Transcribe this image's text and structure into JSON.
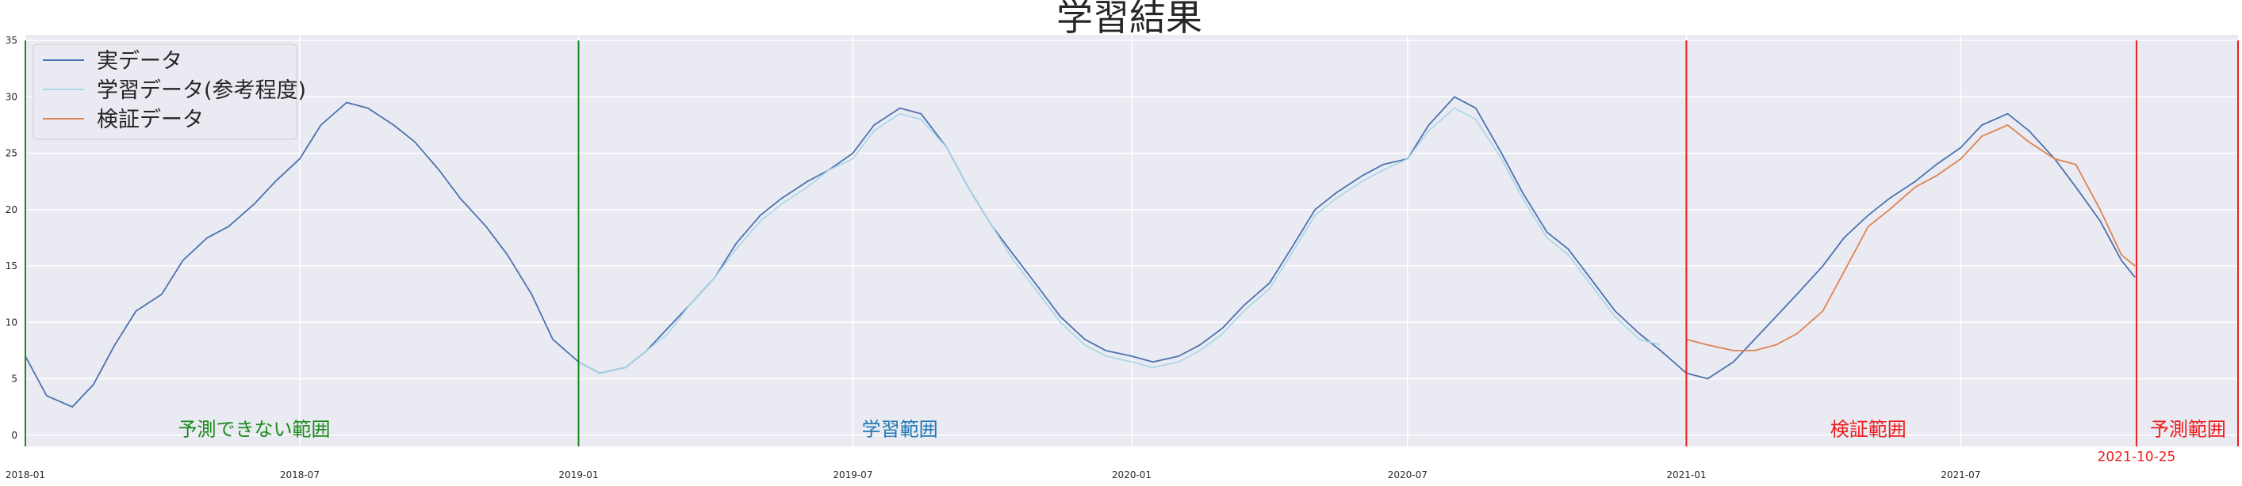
{
  "chart_data": {
    "type": "line",
    "title": "学習結果",
    "xlabel": "",
    "ylabel": "",
    "xlim": [
      "2018-01-01",
      "2021-12-31"
    ],
    "ylim": [
      -1,
      35.5
    ],
    "grid": true,
    "legend_position": "top-left",
    "x_ticks": [
      "2018-01",
      "2018-07",
      "2019-01",
      "2019-07",
      "2020-01",
      "2020-07",
      "2021-01",
      "2021-07"
    ],
    "y_ticks": [
      0,
      5,
      10,
      15,
      20,
      25,
      30,
      35
    ],
    "series": [
      {
        "name": "実データ",
        "color": "#4c72b0",
        "points": [
          [
            "2018-01-01",
            7.0
          ],
          [
            "2018-01-15",
            3.5
          ],
          [
            "2018-02-01",
            2.5
          ],
          [
            "2018-02-15",
            4.5
          ],
          [
            "2018-03-01",
            8.0
          ],
          [
            "2018-03-15",
            11.0
          ],
          [
            "2018-04-01",
            12.5
          ],
          [
            "2018-04-15",
            15.5
          ],
          [
            "2018-05-01",
            17.5
          ],
          [
            "2018-05-15",
            18.5
          ],
          [
            "2018-06-01",
            20.5
          ],
          [
            "2018-06-15",
            22.5
          ],
          [
            "2018-07-01",
            24.5
          ],
          [
            "2018-07-15",
            27.5
          ],
          [
            "2018-08-01",
            29.5
          ],
          [
            "2018-08-15",
            29.0
          ],
          [
            "2018-09-01",
            27.5
          ],
          [
            "2018-09-15",
            26.0
          ],
          [
            "2018-10-01",
            23.5
          ],
          [
            "2018-10-15",
            21.0
          ],
          [
            "2018-11-01",
            18.5
          ],
          [
            "2018-11-15",
            16.0
          ],
          [
            "2018-12-01",
            12.5
          ],
          [
            "2018-12-15",
            8.5
          ],
          [
            "2019-01-01",
            6.5
          ],
          [
            "2019-01-15",
            5.5
          ],
          [
            "2019-02-01",
            6.0
          ],
          [
            "2019-02-15",
            7.5
          ],
          [
            "2019-03-01",
            9.5
          ],
          [
            "2019-03-15",
            11.5
          ],
          [
            "2019-04-01",
            14.0
          ],
          [
            "2019-04-15",
            17.0
          ],
          [
            "2019-05-01",
            19.5
          ],
          [
            "2019-05-15",
            21.0
          ],
          [
            "2019-06-01",
            22.5
          ],
          [
            "2019-06-15",
            23.5
          ],
          [
            "2019-07-01",
            25.0
          ],
          [
            "2019-07-15",
            27.5
          ],
          [
            "2019-08-01",
            29.0
          ],
          [
            "2019-08-15",
            28.5
          ],
          [
            "2019-09-01",
            25.5
          ],
          [
            "2019-09-15",
            22.0
          ],
          [
            "2019-10-01",
            18.5
          ],
          [
            "2019-10-15",
            16.0
          ],
          [
            "2019-11-01",
            13.0
          ],
          [
            "2019-11-15",
            10.5
          ],
          [
            "2019-12-01",
            8.5
          ],
          [
            "2019-12-15",
            7.5
          ],
          [
            "2020-01-01",
            7.0
          ],
          [
            "2020-01-15",
            6.5
          ],
          [
            "2020-02-01",
            7.0
          ],
          [
            "2020-02-15",
            8.0
          ],
          [
            "2020-03-01",
            9.5
          ],
          [
            "2020-03-15",
            11.5
          ],
          [
            "2020-04-01",
            13.5
          ],
          [
            "2020-04-15",
            16.5
          ],
          [
            "2020-05-01",
            20.0
          ],
          [
            "2020-05-15",
            21.5
          ],
          [
            "2020-06-01",
            23.0
          ],
          [
            "2020-06-15",
            24.0
          ],
          [
            "2020-07-01",
            24.5
          ],
          [
            "2020-07-15",
            27.5
          ],
          [
            "2020-08-01",
            30.0
          ],
          [
            "2020-08-15",
            29.0
          ],
          [
            "2020-09-01",
            25.0
          ],
          [
            "2020-09-15",
            21.5
          ],
          [
            "2020-10-01",
            18.0
          ],
          [
            "2020-10-15",
            16.5
          ],
          [
            "2020-11-01",
            13.5
          ],
          [
            "2020-11-15",
            11.0
          ],
          [
            "2020-12-01",
            9.0
          ],
          [
            "2020-12-15",
            7.5
          ],
          [
            "2021-01-01",
            5.5
          ],
          [
            "2021-01-15",
            5.0
          ],
          [
            "2021-02-01",
            6.5
          ],
          [
            "2021-02-15",
            8.5
          ],
          [
            "2021-03-01",
            10.5
          ],
          [
            "2021-03-15",
            12.5
          ],
          [
            "2021-04-01",
            15.0
          ],
          [
            "2021-04-15",
            17.5
          ],
          [
            "2021-05-01",
            19.5
          ],
          [
            "2021-05-15",
            21.0
          ],
          [
            "2021-06-01",
            22.5
          ],
          [
            "2021-06-15",
            24.0
          ],
          [
            "2021-07-01",
            25.5
          ],
          [
            "2021-07-15",
            27.5
          ],
          [
            "2021-08-01",
            28.5
          ],
          [
            "2021-08-15",
            27.0
          ],
          [
            "2021-09-01",
            24.5
          ],
          [
            "2021-09-15",
            22.0
          ],
          [
            "2021-10-01",
            19.0
          ],
          [
            "2021-10-15",
            15.5
          ],
          [
            "2021-10-24",
            14.0
          ]
        ]
      },
      {
        "name": "学習データ(参考程度)",
        "color": "#a6d7e6",
        "points": [
          [
            "2019-01-01",
            6.5
          ],
          [
            "2019-01-15",
            5.5
          ],
          [
            "2019-02-01",
            6.0
          ],
          [
            "2019-02-15",
            7.5
          ],
          [
            "2019-03-01",
            9.0
          ],
          [
            "2019-03-15",
            11.5
          ],
          [
            "2019-04-01",
            14.0
          ],
          [
            "2019-04-15",
            16.5
          ],
          [
            "2019-05-01",
            19.0
          ],
          [
            "2019-05-15",
            20.5
          ],
          [
            "2019-06-01",
            22.0
          ],
          [
            "2019-06-15",
            23.5
          ],
          [
            "2019-07-01",
            24.5
          ],
          [
            "2019-07-15",
            27.0
          ],
          [
            "2019-08-01",
            28.5
          ],
          [
            "2019-08-15",
            28.0
          ],
          [
            "2019-09-01",
            25.5
          ],
          [
            "2019-09-15",
            22.0
          ],
          [
            "2019-10-01",
            18.5
          ],
          [
            "2019-10-15",
            15.5
          ],
          [
            "2019-11-01",
            12.5
          ],
          [
            "2019-11-15",
            10.0
          ],
          [
            "2019-12-01",
            8.0
          ],
          [
            "2019-12-15",
            7.0
          ],
          [
            "2020-01-01",
            6.5
          ],
          [
            "2020-01-15",
            6.0
          ],
          [
            "2020-02-01",
            6.5
          ],
          [
            "2020-02-15",
            7.5
          ],
          [
            "2020-03-01",
            9.0
          ],
          [
            "2020-03-15",
            11.0
          ],
          [
            "2020-04-01",
            13.0
          ],
          [
            "2020-04-15",
            16.0
          ],
          [
            "2020-05-01",
            19.5
          ],
          [
            "2020-05-15",
            21.0
          ],
          [
            "2020-06-01",
            22.5
          ],
          [
            "2020-06-15",
            23.5
          ],
          [
            "2020-07-01",
            24.5
          ],
          [
            "2020-07-15",
            27.0
          ],
          [
            "2020-08-01",
            29.0
          ],
          [
            "2020-08-15",
            28.0
          ],
          [
            "2020-09-01",
            24.5
          ],
          [
            "2020-09-15",
            21.0
          ],
          [
            "2020-10-01",
            17.5
          ],
          [
            "2020-10-15",
            16.0
          ],
          [
            "2020-11-01",
            13.0
          ],
          [
            "2020-11-15",
            10.5
          ],
          [
            "2020-12-01",
            8.5
          ],
          [
            "2020-12-15",
            8.0
          ]
        ]
      },
      {
        "name": "検証データ",
        "color": "#dd8452",
        "points": [
          [
            "2021-01-01",
            8.5
          ],
          [
            "2021-01-15",
            8.0
          ],
          [
            "2021-02-01",
            7.5
          ],
          [
            "2021-02-15",
            7.5
          ],
          [
            "2021-03-01",
            8.0
          ],
          [
            "2021-03-15",
            9.0
          ],
          [
            "2021-04-01",
            11.0
          ],
          [
            "2021-04-15",
            14.5
          ],
          [
            "2021-05-01",
            18.5
          ],
          [
            "2021-05-15",
            20.0
          ],
          [
            "2021-06-01",
            22.0
          ],
          [
            "2021-06-15",
            23.0
          ],
          [
            "2021-07-01",
            24.5
          ],
          [
            "2021-07-15",
            26.5
          ],
          [
            "2021-08-01",
            27.5
          ],
          [
            "2021-08-15",
            26.0
          ],
          [
            "2021-09-01",
            24.5
          ],
          [
            "2021-09-15",
            24.0
          ],
          [
            "2021-10-01",
            20.0
          ],
          [
            "2021-10-15",
            16.0
          ],
          [
            "2021-10-24",
            15.0
          ]
        ]
      }
    ],
    "vlines": [
      {
        "x": "2018-01-01",
        "color": "green"
      },
      {
        "x": "2019-01-01",
        "color": "green"
      },
      {
        "x": "2021-01-01",
        "color": "red"
      },
      {
        "x": "2021-10-25",
        "color": "red"
      },
      {
        "x": "2021-12-31",
        "color": "red"
      }
    ],
    "annotations": [
      {
        "text": "予測できない範囲",
        "x": "2018-06-01",
        "y": 0.5,
        "color": "green"
      },
      {
        "text": "学習範囲",
        "x": "2019-08-01",
        "y": 0.5,
        "color": "#1f77b4"
      },
      {
        "text": "検証範囲",
        "x": "2021-05-01",
        "y": 0.5,
        "color": "red"
      },
      {
        "text": "予測範囲",
        "x": "2021-11-28",
        "y": 0.5,
        "color": "red"
      },
      {
        "text": "2021-10-25",
        "x": "2021-10-25",
        "y": -1.6,
        "color": "red"
      }
    ]
  }
}
